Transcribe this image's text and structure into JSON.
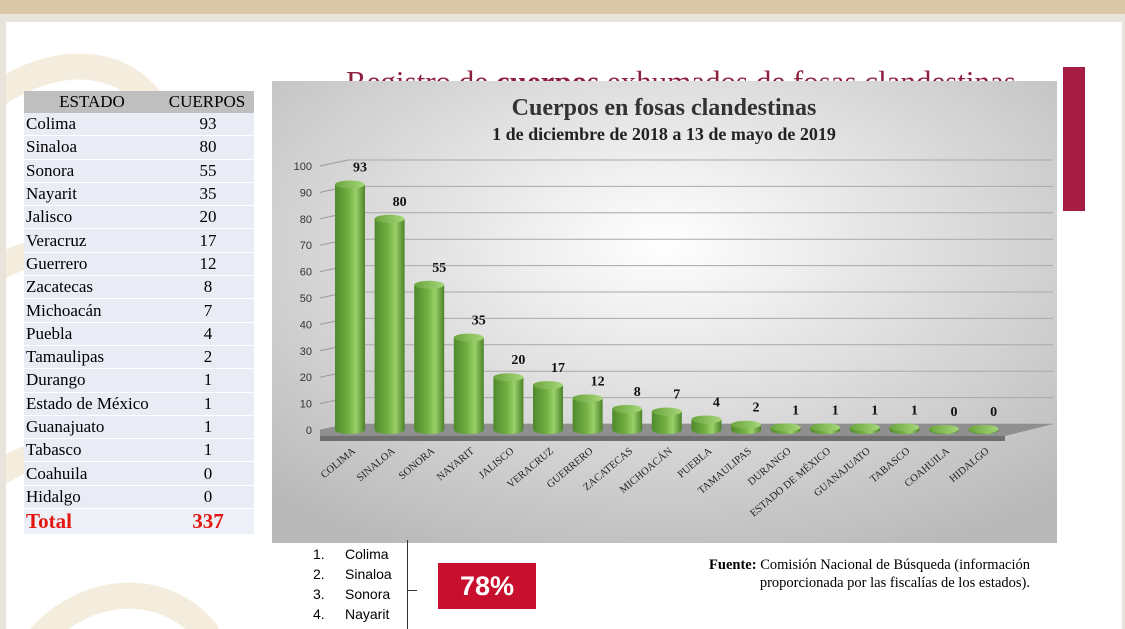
{
  "slide_title": {
    "prefix": "Registro de ",
    "bold": "cuerpos",
    "suffix": " exhumados de fosas clandestinas"
  },
  "table": {
    "headers": [
      "ESTADO",
      "CUERPOS"
    ],
    "rows": [
      [
        "Colima",
        "93"
      ],
      [
        "Sinaloa",
        "80"
      ],
      [
        "Sonora",
        "55"
      ],
      [
        "Nayarit",
        "35"
      ],
      [
        "Jalisco",
        "20"
      ],
      [
        "Veracruz",
        "17"
      ],
      [
        "Guerrero",
        "12"
      ],
      [
        "Zacatecas",
        "8"
      ],
      [
        "Michoacán",
        "7"
      ],
      [
        "Puebla",
        "4"
      ],
      [
        "Tamaulipas",
        "2"
      ],
      [
        "Durango",
        "1"
      ],
      [
        "Estado de México",
        "1"
      ],
      [
        "Guanajuato",
        "1"
      ],
      [
        "Tabasco",
        "1"
      ],
      [
        "Coahuila",
        "0"
      ],
      [
        "Hidalgo",
        "0"
      ]
    ],
    "total_label": "Total",
    "total_value": "337"
  },
  "chart_data": {
    "type": "bar",
    "title": "Cuerpos en fosas clandestinas",
    "subtitle": "1 de diciembre de 2018 a  13 de mayo de 2019",
    "categories": [
      "COLIMA",
      "SINALOA",
      "SONORA",
      "NAYARIT",
      "JALISCO",
      "VERACRUZ",
      "GUERRERO",
      "ZACATECAS",
      "MICHOACÁN",
      "PUEBLA",
      "TAMAULIPAS",
      "DURANGO",
      "ESTADO DE MÉXICO",
      "GUANAJUATO",
      "TABASCO",
      "COAHUILA",
      "HIDALGO"
    ],
    "values": [
      93,
      80,
      55,
      35,
      20,
      17,
      12,
      8,
      7,
      4,
      2,
      1,
      1,
      1,
      1,
      0,
      0
    ],
    "ylim": [
      0,
      100
    ],
    "yticks": [
      0,
      10,
      20,
      30,
      40,
      50,
      60,
      70,
      80,
      90,
      100
    ],
    "grid": true,
    "bar_color": "#72b043"
  },
  "ranking": [
    "Colima",
    "Sinaloa",
    "Sonora",
    "Nayarit"
  ],
  "ranking_numbers": [
    "1.",
    "2.",
    "3.",
    "4."
  ],
  "share_percent": "78%",
  "source": {
    "label": "Fuente:",
    "text": "Comisión Nacional de Búsqueda (información proporcionada por las fiscalías de los estados)."
  }
}
